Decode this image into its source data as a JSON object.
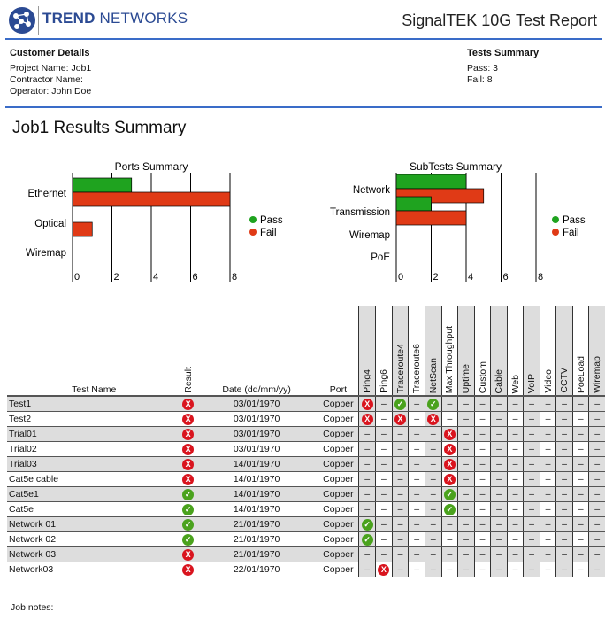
{
  "header": {
    "brand_bold": "TREND",
    "brand_light": " NETWORKS",
    "title": "SignalTEK 10G Test Report"
  },
  "customer": {
    "heading": "Customer Details",
    "project": "Project Name: Job1",
    "contractor": "Contractor Name:",
    "operator": "Operator: John Doe"
  },
  "summary": {
    "heading": "Tests Summary",
    "pass": "Pass: 3",
    "fail": "Fail: 8"
  },
  "job_title": "Job1 Results Summary",
  "colors": {
    "pass": "#1fa31f",
    "fail": "#e03a16",
    "accent": "#3a6cc8"
  },
  "chart_data": [
    {
      "type": "bar",
      "title": "Ports Summary",
      "categories": [
        "Ethernet",
        "Optical",
        "Wiremap"
      ],
      "series": [
        {
          "name": "Pass",
          "values": [
            3,
            0,
            0
          ]
        },
        {
          "name": "Fail",
          "values": [
            8,
            1,
            0
          ]
        }
      ],
      "xlim": [
        0,
        8
      ],
      "xticks": [
        "0",
        "2",
        "4",
        "6",
        "8"
      ],
      "legend": "right"
    },
    {
      "type": "bar",
      "title": "SubTests Summary",
      "categories": [
        "Network",
        "Transmission",
        "Wiremap",
        "PoE"
      ],
      "series": [
        {
          "name": "Pass",
          "values": [
            4,
            2,
            0,
            0
          ]
        },
        {
          "name": "Fail",
          "values": [
            5,
            4,
            0,
            0
          ]
        }
      ],
      "xlim": [
        0,
        8
      ],
      "xticks": [
        "0",
        "2",
        "4",
        "6",
        "8"
      ],
      "legend": "right"
    }
  ],
  "table": {
    "headers": {
      "name": "Test Name",
      "result": "Result",
      "date": "Date (dd/mm/yy)",
      "port": "Port"
    },
    "subtests": [
      "Ping4",
      "Ping6",
      "Traceroute4",
      "Traceroute6",
      "NetScan",
      "Max Throughput",
      "Uptime",
      "Custom",
      "Cable",
      "Web",
      "VoIP",
      "Video",
      "CCTV",
      "PoeLoad",
      "Wiremap"
    ],
    "dash": "–",
    "rows": [
      {
        "name": "Test1",
        "result": "fail",
        "date": "03/01/1970",
        "port": "Copper",
        "sub": [
          "fail",
          "-",
          "pass",
          "-",
          "pass",
          "-",
          "-",
          "-",
          "-",
          "-",
          "-",
          "-",
          "-",
          "-",
          "-"
        ]
      },
      {
        "name": "Test2",
        "result": "fail",
        "date": "03/01/1970",
        "port": "Copper",
        "sub": [
          "fail",
          "-",
          "fail",
          "-",
          "fail",
          "-",
          "-",
          "-",
          "-",
          "-",
          "-",
          "-",
          "-",
          "-",
          "-"
        ]
      },
      {
        "name": "Trial01",
        "result": "fail",
        "date": "03/01/1970",
        "port": "Copper",
        "sub": [
          "-",
          "-",
          "-",
          "-",
          "-",
          "fail",
          "-",
          "-",
          "-",
          "-",
          "-",
          "-",
          "-",
          "-",
          "-"
        ]
      },
      {
        "name": "Trial02",
        "result": "fail",
        "date": "03/01/1970",
        "port": "Copper",
        "sub": [
          "-",
          "-",
          "-",
          "-",
          "-",
          "fail",
          "-",
          "-",
          "-",
          "-",
          "-",
          "-",
          "-",
          "-",
          "-"
        ]
      },
      {
        "name": "Trial03",
        "result": "fail",
        "date": "14/01/1970",
        "port": "Copper",
        "sub": [
          "-",
          "-",
          "-",
          "-",
          "-",
          "fail",
          "-",
          "-",
          "-",
          "-",
          "-",
          "-",
          "-",
          "-",
          "-"
        ]
      },
      {
        "name": "Cat5e cable",
        "result": "fail",
        "date": "14/01/1970",
        "port": "Copper",
        "sub": [
          "-",
          "-",
          "-",
          "-",
          "-",
          "fail",
          "-",
          "-",
          "-",
          "-",
          "-",
          "-",
          "-",
          "-",
          "-"
        ]
      },
      {
        "name": "Cat5e1",
        "result": "pass",
        "date": "14/01/1970",
        "port": "Copper",
        "sub": [
          "-",
          "-",
          "-",
          "-",
          "-",
          "pass",
          "-",
          "-",
          "-",
          "-",
          "-",
          "-",
          "-",
          "-",
          "-"
        ]
      },
      {
        "name": "Cat5e",
        "result": "pass",
        "date": "14/01/1970",
        "port": "Copper",
        "sub": [
          "-",
          "-",
          "-",
          "-",
          "-",
          "pass",
          "-",
          "-",
          "-",
          "-",
          "-",
          "-",
          "-",
          "-",
          "-"
        ]
      },
      {
        "name": "Network 01",
        "result": "pass",
        "date": "21/01/1970",
        "port": "Copper",
        "sub": [
          "pass",
          "-",
          "-",
          "-",
          "-",
          "-",
          "-",
          "-",
          "-",
          "-",
          "-",
          "-",
          "-",
          "-",
          "-"
        ]
      },
      {
        "name": "Network 02",
        "result": "pass",
        "date": "21/01/1970",
        "port": "Copper",
        "sub": [
          "pass",
          "-",
          "-",
          "-",
          "-",
          "-",
          "-",
          "-",
          "-",
          "-",
          "-",
          "-",
          "-",
          "-",
          "-"
        ]
      },
      {
        "name": "Network 03",
        "result": "fail",
        "date": "21/01/1970",
        "port": "Copper",
        "sub": [
          "-",
          "-",
          "-",
          "-",
          "-",
          "-",
          "-",
          "-",
          "-",
          "-",
          "-",
          "-",
          "-",
          "-",
          "-"
        ]
      },
      {
        "name": "Network03",
        "result": "fail",
        "date": "22/01/1970",
        "port": "Copper",
        "sub": [
          "-",
          "fail",
          "-",
          "-",
          "-",
          "-",
          "-",
          "-",
          "-",
          "-",
          "-",
          "-",
          "-",
          "-",
          "-"
        ]
      }
    ]
  },
  "notes_label": "Job notes:"
}
